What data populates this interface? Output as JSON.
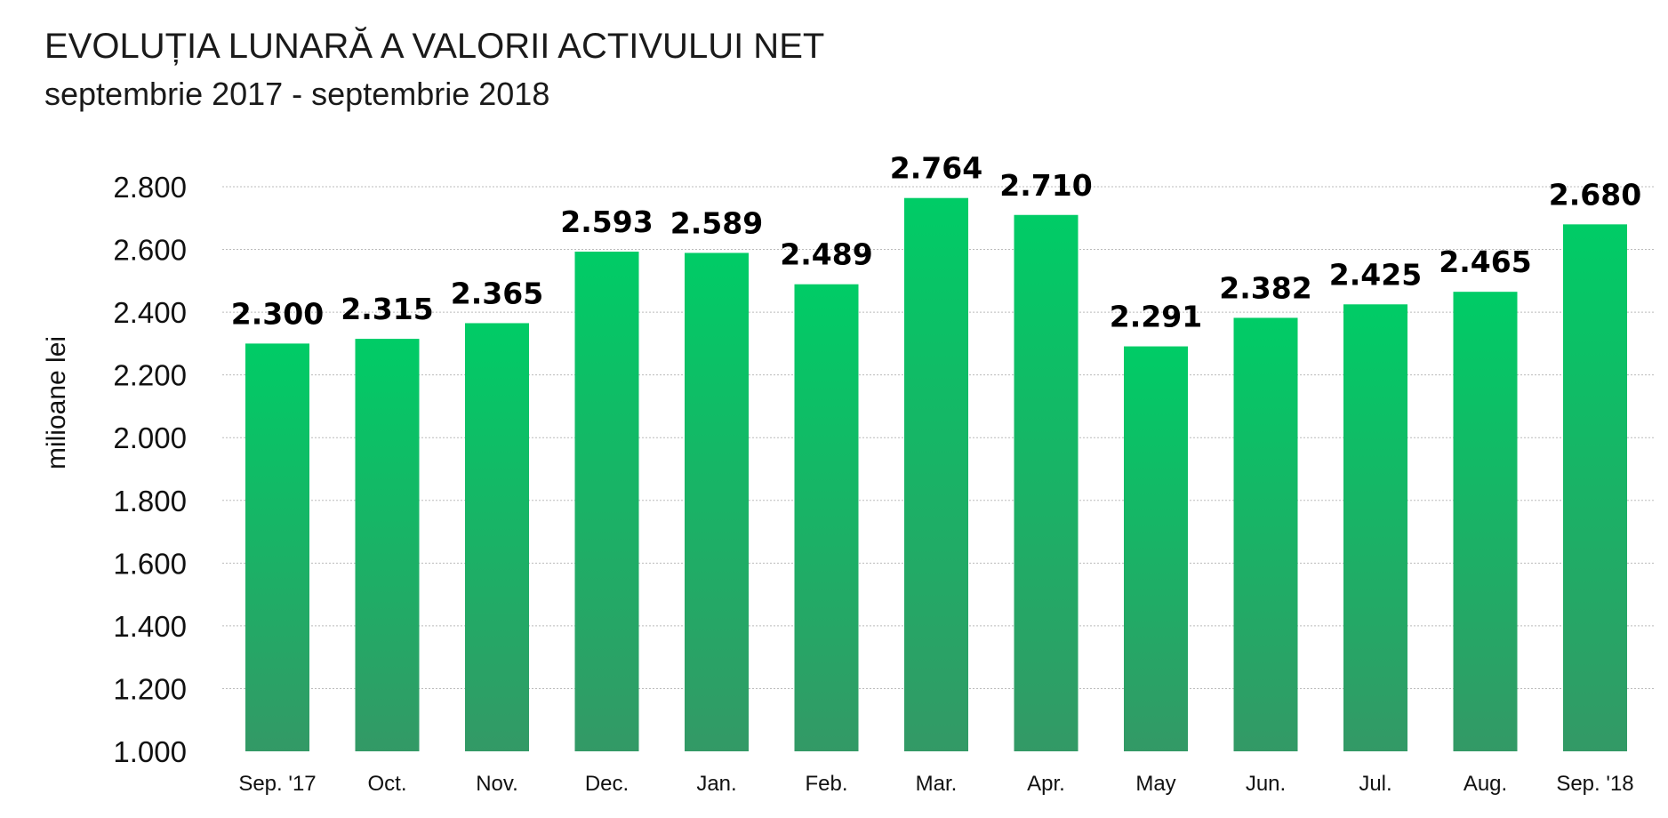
{
  "chart_data": {
    "type": "bar",
    "title": "EVOLUȚIA LUNARĂ A VALORII ACTIVULUI NET",
    "subtitle": "septembrie 2017 - septembrie 2018",
    "ylabel": "milioane lei",
    "xlabel": "",
    "ylim": [
      1000,
      2800
    ],
    "yticks": [
      1000,
      1200,
      1400,
      1600,
      1800,
      2000,
      2200,
      2400,
      2600,
      2800
    ],
    "ytick_labels": [
      "1.000",
      "1.200",
      "1.400",
      "1.600",
      "1.800",
      "2.000",
      "2.200",
      "2.400",
      "2.600",
      "2.800"
    ],
    "grid": true,
    "categories": [
      "Sep. '17",
      "Oct.",
      "Nov.",
      "Dec.",
      "Jan.",
      "Feb.",
      "Mar.",
      "Apr.",
      "May",
      "Jun.",
      "Jul.",
      "Aug.",
      "Sep. '18"
    ],
    "values": [
      2300,
      2315,
      2365,
      2593,
      2589,
      2489,
      2764,
      2710,
      2291,
      2382,
      2425,
      2465,
      2680
    ],
    "data_labels": [
      "2.300",
      "2.315",
      "2.365",
      "2.593",
      "2.589",
      "2.489",
      "2.764",
      "2.710",
      "2.291",
      "2.382",
      "2.425",
      "2.465",
      "2.680"
    ],
    "bar_color_top": "#00cc66",
    "bar_color_bottom": "#339966",
    "grid_color": "#bbbbbb"
  }
}
